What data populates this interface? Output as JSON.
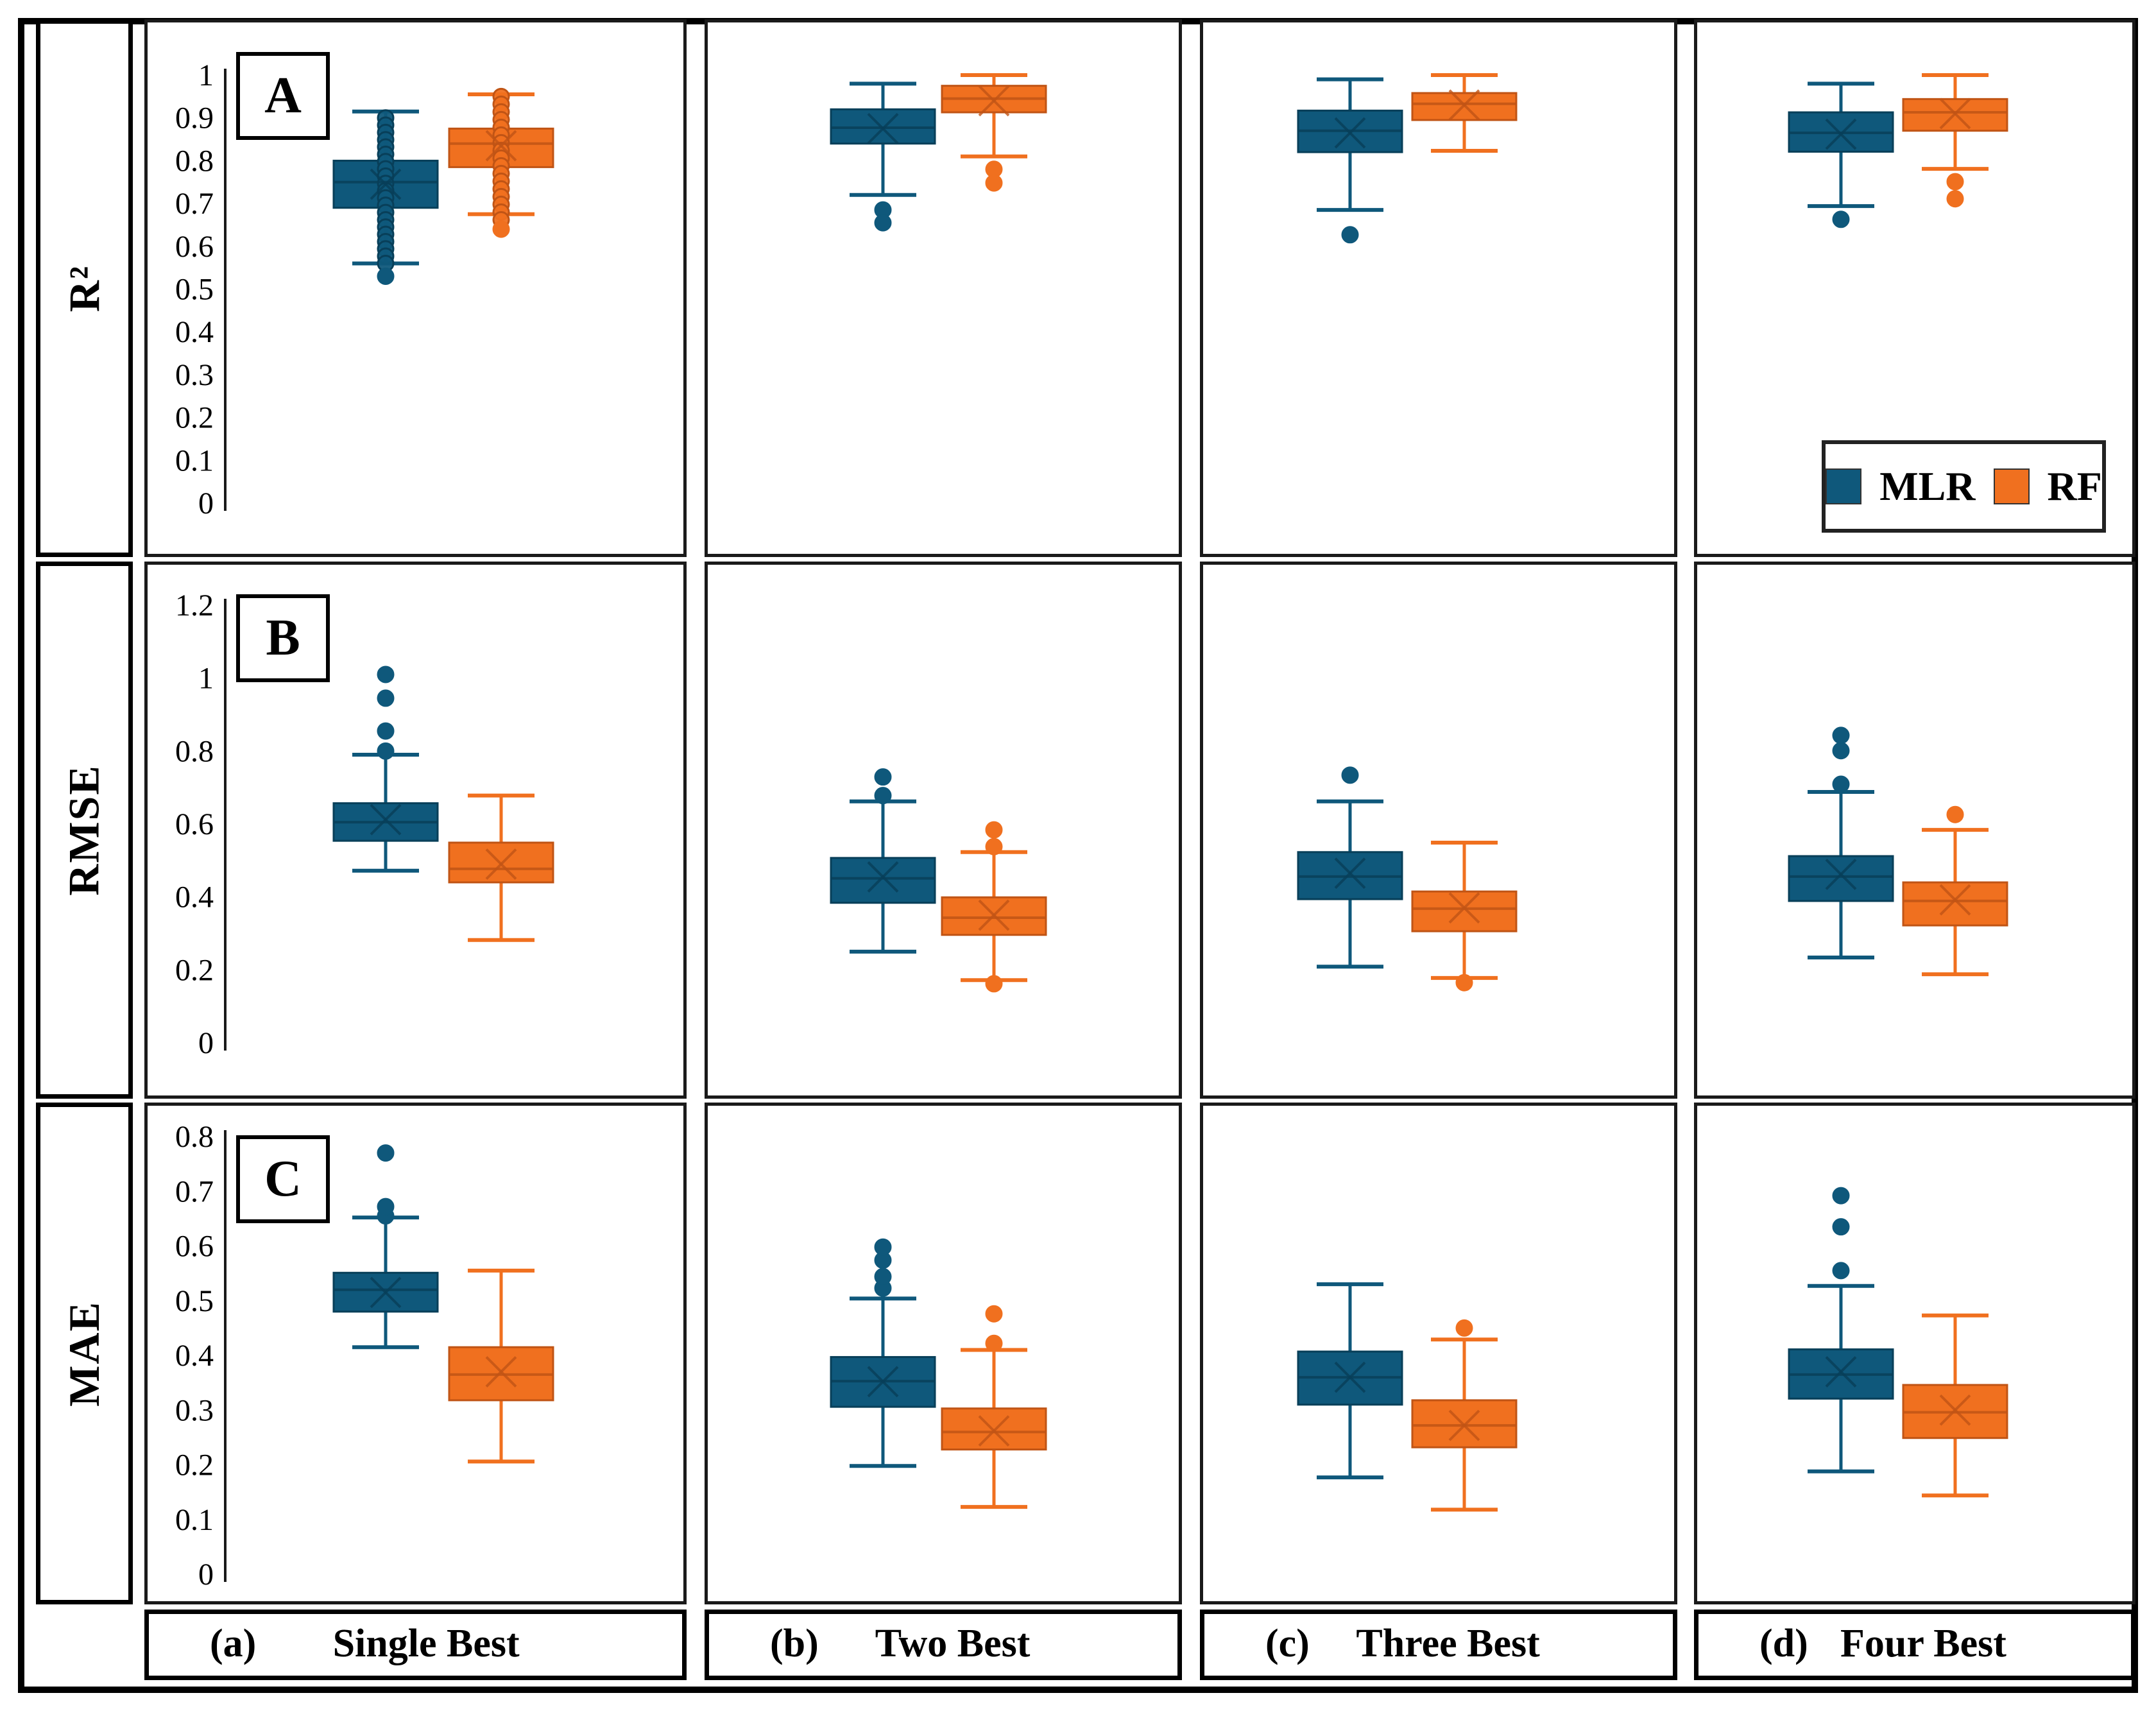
{
  "colors": {
    "mlr": "#0F587B",
    "rf": "#F0701F",
    "mlr_dark": "#083F59",
    "rf_dark": "#C05415",
    "axis_text": "#000000"
  },
  "legend": {
    "items": [
      {
        "id": "mlr",
        "label": "MLR"
      },
      {
        "id": "rf",
        "label": "RF"
      }
    ]
  },
  "columns": [
    {
      "id": "a",
      "index_label": "(a)",
      "title": "Single Best"
    },
    {
      "id": "b",
      "index_label": "(b)",
      "title": "Two Best"
    },
    {
      "id": "c",
      "index_label": "(c)",
      "title": "Three Best"
    },
    {
      "id": "d",
      "index_label": "(d)",
      "title": "Four Best"
    }
  ],
  "chart_data": {
    "type": "boxplot-grid",
    "series_names": [
      "MLR",
      "RF"
    ],
    "grid": "3 metric rows x 4 feature-set columns, two boxes per panel",
    "rows": [
      {
        "metric": "R²",
        "panel_letter": "A",
        "axis": {
          "min": 0,
          "max": 1,
          "step": 0.1,
          "tick_labels": [
            "1",
            "0.9",
            "0.8",
            "0.7",
            "0.6",
            "0.5",
            "0.4",
            "0.3",
            "0.2",
            "0.1",
            "0"
          ]
        },
        "panels": [
          {
            "column": "Single Best",
            "boxes": [
              {
                "series": "MLR",
                "whisker_low": 0.56,
                "q1": 0.69,
                "median": 0.75,
                "q3": 0.8,
                "whisker_high": 0.915,
                "mean": 0.745,
                "outliers": [
                  0.53
                ],
                "points": [
                  0.9,
                  0.883,
                  0.866,
                  0.849,
                  0.832,
                  0.815,
                  0.798,
                  0.781,
                  0.764,
                  0.747,
                  0.73,
                  0.713,
                  0.696,
                  0.679,
                  0.662,
                  0.645,
                  0.628,
                  0.611,
                  0.594,
                  0.577,
                  0.56
                ]
              },
              {
                "series": "RF",
                "whisker_low": 0.675,
                "q1": 0.785,
                "median": 0.84,
                "q3": 0.875,
                "whisker_high": 0.955,
                "mean": 0.835,
                "outliers": [
                  0.64
                ],
                "points": [
                  0.95,
                  0.932,
                  0.914,
                  0.896,
                  0.878,
                  0.86,
                  0.842,
                  0.824,
                  0.806,
                  0.788,
                  0.77,
                  0.752,
                  0.734,
                  0.716,
                  0.698,
                  0.68,
                  0.662
                ]
              }
            ]
          },
          {
            "column": "Two Best",
            "boxes": [
              {
                "series": "MLR",
                "whisker_low": 0.72,
                "q1": 0.84,
                "median": 0.877,
                "q3": 0.92,
                "whisker_high": 0.98,
                "mean": 0.875,
                "outliers": [
                  0.685,
                  0.655
                ],
                "points": []
              },
              {
                "series": "RF",
                "whisker_low": 0.81,
                "q1": 0.913,
                "median": 0.945,
                "q3": 0.975,
                "whisker_high": 1.0,
                "mean": 0.94,
                "outliers": [
                  0.78,
                  0.748
                ],
                "points": []
              }
            ]
          },
          {
            "column": "Three Best",
            "boxes": [
              {
                "series": "MLR",
                "whisker_low": 0.685,
                "q1": 0.82,
                "median": 0.87,
                "q3": 0.917,
                "whisker_high": 0.99,
                "mean": 0.865,
                "outliers": [
                  0.627
                ],
                "points": []
              },
              {
                "series": "RF",
                "whisker_low": 0.823,
                "q1": 0.895,
                "median": 0.933,
                "q3": 0.958,
                "whisker_high": 1.0,
                "mean": 0.93,
                "outliers": [],
                "points": []
              }
            ]
          },
          {
            "column": "Four Best",
            "boxes": [
              {
                "series": "MLR",
                "whisker_low": 0.694,
                "q1": 0.821,
                "median": 0.865,
                "q3": 0.913,
                "whisker_high": 0.98,
                "mean": 0.862,
                "outliers": [
                  0.663
                ],
                "points": []
              },
              {
                "series": "RF",
                "whisker_low": 0.781,
                "q1": 0.87,
                "median": 0.913,
                "q3": 0.944,
                "whisker_high": 1.0,
                "mean": 0.91,
                "outliers": [
                  0.751,
                  0.711
                ],
                "points": []
              }
            ]
          }
        ]
      },
      {
        "metric": "RMSE",
        "panel_letter": "B",
        "axis": {
          "min": 0,
          "max": 1.2,
          "step": 0.2,
          "tick_labels": [
            "1.2",
            "1",
            "0.8",
            "0.6",
            "0.4",
            "0.2",
            "0"
          ]
        },
        "panels": [
          {
            "column": "Single Best",
            "boxes": [
              {
                "series": "MLR",
                "whisker_low": 0.472,
                "q1": 0.554,
                "median": 0.605,
                "q3": 0.657,
                "whisker_high": 0.79,
                "mean": 0.612,
                "outliers": [
                  0.8,
                  0.855,
                  0.945,
                  1.01
                ],
                "points": []
              },
              {
                "series": "RF",
                "whisker_low": 0.282,
                "q1": 0.44,
                "median": 0.477,
                "q3": 0.549,
                "whisker_high": 0.678,
                "mean": 0.49,
                "outliers": [],
                "points": []
              }
            ]
          },
          {
            "column": "Two Best",
            "boxes": [
              {
                "series": "MLR",
                "whisker_low": 0.25,
                "q1": 0.384,
                "median": 0.451,
                "q3": 0.507,
                "whisker_high": 0.662,
                "mean": 0.455,
                "outliers": [
                  0.678,
                  0.729
                ],
                "points": []
              },
              {
                "series": "RF",
                "whisker_low": 0.172,
                "q1": 0.296,
                "median": 0.343,
                "q3": 0.399,
                "whisker_high": 0.523,
                "mean": 0.35,
                "outliers": [
                  0.538,
                  0.584,
                  0.162
                ],
                "points": []
              }
            ]
          },
          {
            "column": "Three Best",
            "boxes": [
              {
                "series": "MLR",
                "whisker_low": 0.209,
                "q1": 0.394,
                "median": 0.456,
                "q3": 0.523,
                "whisker_high": 0.662,
                "mean": 0.465,
                "outliers": [
                  0.734
                ],
                "points": []
              },
              {
                "series": "RF",
                "whisker_low": 0.178,
                "q1": 0.306,
                "median": 0.368,
                "q3": 0.415,
                "whisker_high": 0.549,
                "mean": 0.37,
                "outliers": [
                  0.165
                ],
                "points": []
              }
            ]
          },
          {
            "column": "Four Best",
            "boxes": [
              {
                "series": "MLR",
                "whisker_low": 0.234,
                "q1": 0.389,
                "median": 0.456,
                "q3": 0.512,
                "whisker_high": 0.688,
                "mean": 0.462,
                "outliers": [
                  0.709,
                  0.801,
                  0.843
                ],
                "points": []
              },
              {
                "series": "RF",
                "whisker_low": 0.188,
                "q1": 0.322,
                "median": 0.389,
                "q3": 0.44,
                "whisker_high": 0.584,
                "mean": 0.392,
                "outliers": [
                  0.626
                ],
                "points": []
              }
            ]
          }
        ]
      },
      {
        "metric": "MAE",
        "panel_letter": "C",
        "axis": {
          "min": 0,
          "max": 0.8,
          "step": 0.1,
          "tick_labels": [
            "0.8",
            "0.7",
            "0.6",
            "0.5",
            "0.4",
            "0.3",
            "0.2",
            "0.1",
            "0"
          ]
        },
        "panels": [
          {
            "column": "Single Best",
            "boxes": [
              {
                "series": "MLR",
                "whisker_low": 0.415,
                "q1": 0.48,
                "median": 0.52,
                "q3": 0.551,
                "whisker_high": 0.652,
                "mean": 0.515,
                "outliers": [
                  0.655,
                  0.672,
                  0.77
                ],
                "points": []
              },
              {
                "series": "RF",
                "whisker_low": 0.206,
                "q1": 0.318,
                "median": 0.365,
                "q3": 0.415,
                "whisker_high": 0.555,
                "mean": 0.37,
                "outliers": [],
                "points": []
              }
            ]
          },
          {
            "column": "Two Best",
            "boxes": [
              {
                "series": "MLR",
                "whisker_low": 0.198,
                "q1": 0.306,
                "median": 0.353,
                "q3": 0.397,
                "whisker_high": 0.504,
                "mean": 0.352,
                "outliers": [
                  0.523,
                  0.544,
                  0.574,
                  0.598
                ],
                "points": []
              },
              {
                "series": "RF",
                "whisker_low": 0.123,
                "q1": 0.228,
                "median": 0.26,
                "q3": 0.303,
                "whisker_high": 0.41,
                "mean": 0.262,
                "outliers": [
                  0.422,
                  0.476
                ],
                "points": []
              }
            ]
          },
          {
            "column": "Three Best",
            "boxes": [
              {
                "series": "MLR",
                "whisker_low": 0.177,
                "q1": 0.31,
                "median": 0.36,
                "q3": 0.407,
                "whisker_high": 0.53,
                "mean": 0.36,
                "outliers": [],
                "points": []
              },
              {
                "series": "RF",
                "whisker_low": 0.118,
                "q1": 0.232,
                "median": 0.272,
                "q3": 0.318,
                "whisker_high": 0.429,
                "mean": 0.272,
                "outliers": [
                  0.45
                ],
                "points": []
              }
            ]
          },
          {
            "column": "Four Best",
            "boxes": [
              {
                "series": "MLR",
                "whisker_low": 0.188,
                "q1": 0.321,
                "median": 0.365,
                "q3": 0.411,
                "whisker_high": 0.527,
                "mean": 0.37,
                "outliers": [
                  0.555,
                  0.635,
                  0.692
                ],
                "points": []
              },
              {
                "series": "RF",
                "whisker_low": 0.144,
                "q1": 0.249,
                "median": 0.296,
                "q3": 0.346,
                "whisker_high": 0.473,
                "mean": 0.3,
                "outliers": [],
                "points": []
              }
            ]
          }
        ]
      }
    ]
  }
}
